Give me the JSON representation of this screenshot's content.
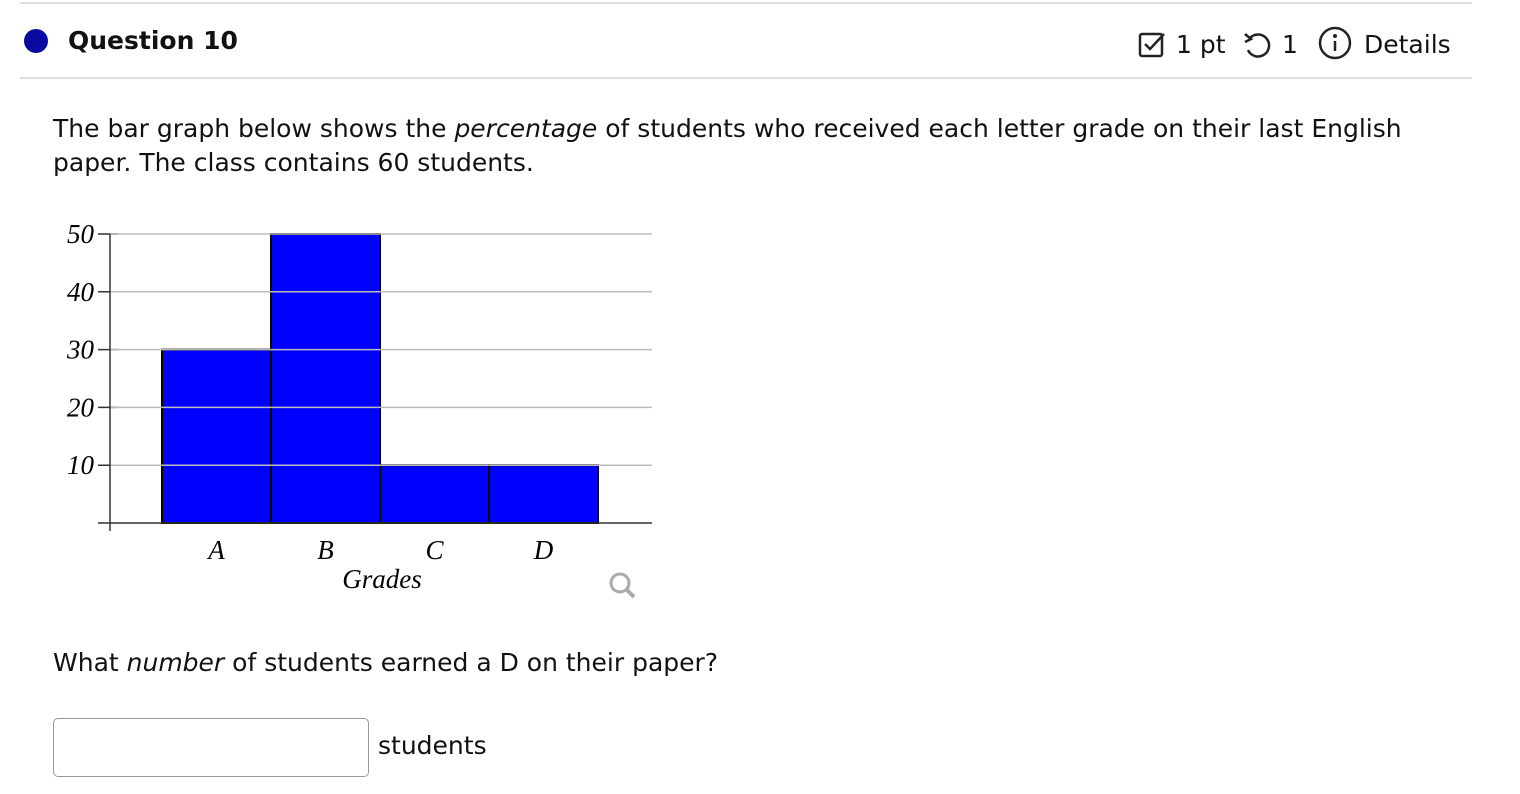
{
  "header": {
    "title": "Question 10",
    "points": "1 pt",
    "attempts": "1",
    "details": "Details"
  },
  "question": {
    "parts": [
      "The bar graph below shows the ",
      "percentage",
      " of students who received each letter grade on their last English paper. The class contains 60 students."
    ]
  },
  "chart_data": {
    "type": "bar",
    "categories": [
      "A",
      "B",
      "C",
      "D"
    ],
    "values": [
      30,
      50,
      10,
      10
    ],
    "color": "#0000ff",
    "ylim": [
      0,
      50
    ],
    "yticks": [
      10,
      20,
      30,
      40,
      50
    ],
    "x_label": "Grades",
    "grid": true
  },
  "prompt": {
    "parts": [
      "What ",
      "number",
      " of students earned a D on their paper?"
    ]
  },
  "answer": {
    "unit": "students"
  }
}
